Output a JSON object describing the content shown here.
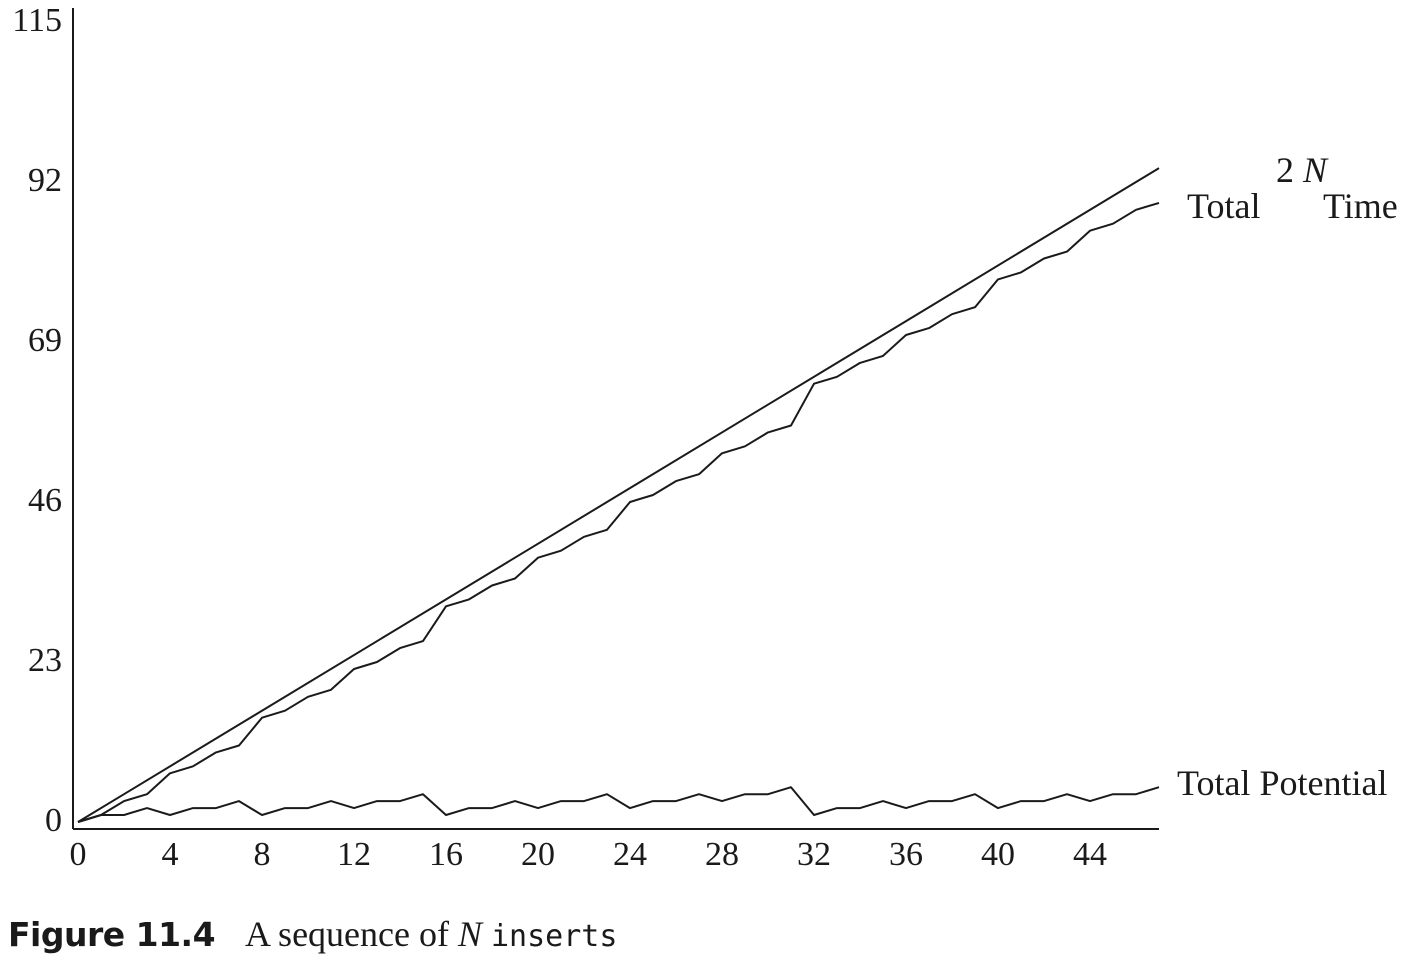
{
  "chart_data": {
    "type": "line",
    "title": "",
    "xlabel": "",
    "ylabel": "",
    "xlim": [
      0,
      47
    ],
    "ylim": [
      0,
      115
    ],
    "x_ticks": [
      0,
      4,
      8,
      12,
      16,
      20,
      24,
      28,
      32,
      36,
      40,
      44
    ],
    "y_ticks": [
      0,
      23,
      46,
      69,
      92,
      115
    ],
    "grid": false,
    "legend": "inline labels at right end of each line",
    "series": [
      {
        "name_parts": [
          "Total",
          "2N",
          "Time"
        ],
        "x": [
          0,
          47
        ],
        "y": [
          0,
          94
        ]
      },
      {
        "x": [
          0,
          1,
          2,
          3,
          4,
          5,
          6,
          7,
          8,
          9,
          10,
          11,
          12,
          13,
          14,
          15,
          16,
          17,
          18,
          19,
          20,
          21,
          22,
          23,
          24,
          25,
          26,
          27,
          28,
          29,
          30,
          31,
          32,
          33,
          34,
          35,
          36,
          37,
          38,
          39,
          40,
          41,
          42,
          43,
          44,
          45,
          46,
          47
        ],
        "y": [
          0,
          1,
          3,
          4,
          7,
          8,
          10,
          11,
          15,
          16,
          18,
          19,
          22,
          23,
          25,
          26,
          31,
          32,
          34,
          35,
          38,
          39,
          41,
          42,
          46,
          47,
          49,
          50,
          53,
          54,
          56,
          57,
          63,
          64,
          66,
          67,
          70,
          71,
          73,
          74,
          78,
          79,
          81,
          82,
          85,
          86,
          88,
          89
        ]
      },
      {
        "name": "Total Potential",
        "x": [
          0,
          1,
          2,
          3,
          4,
          5,
          6,
          7,
          8,
          9,
          10,
          11,
          12,
          13,
          14,
          15,
          16,
          17,
          18,
          19,
          20,
          21,
          22,
          23,
          24,
          25,
          26,
          27,
          28,
          29,
          30,
          31,
          32,
          33,
          34,
          35,
          36,
          37,
          38,
          39,
          40,
          41,
          42,
          43,
          44,
          45,
          46,
          47
        ],
        "y": [
          0,
          1,
          1,
          2,
          1,
          2,
          2,
          3,
          1,
          2,
          2,
          3,
          2,
          3,
          3,
          4,
          1,
          2,
          2,
          3,
          2,
          3,
          3,
          4,
          2,
          3,
          3,
          4,
          3,
          4,
          4,
          5,
          1,
          2,
          2,
          3,
          2,
          3,
          3,
          4,
          2,
          3,
          3,
          4,
          3,
          4,
          4,
          5
        ]
      }
    ]
  },
  "caption": {
    "figure_number": "Figure 11.4",
    "text_before": "A sequence of",
    "variable": "N",
    "code": "inserts"
  }
}
